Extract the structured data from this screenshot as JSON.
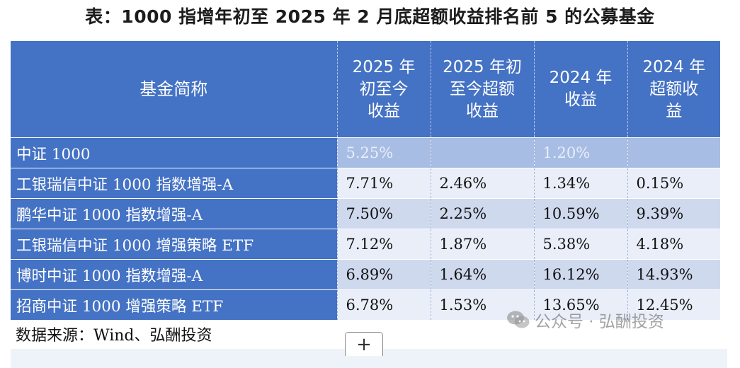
{
  "title": "表：1000 指增年初至 2025 年 2 月底超额收益排名前 5 的公募基金",
  "table": {
    "headers": {
      "name": "基金简称",
      "ytd_return": [
        "2025 年",
        "初至今",
        "收益"
      ],
      "ytd_excess": [
        "2025 年初",
        "至今超额",
        "收益"
      ],
      "return_2024": [
        "2024 年",
        "收益"
      ],
      "excess_2024": [
        "2024 年",
        "超额收",
        "益"
      ]
    },
    "rows": [
      {
        "name": "中证 1000",
        "ytd_return": "5.25%",
        "ytd_excess": "",
        "return_2024": "1.20%",
        "excess_2024": ""
      },
      {
        "name": "工银瑞信中证 1000 指数增强-A",
        "ytd_return": "7.71%",
        "ytd_excess": "2.46%",
        "return_2024": "1.34%",
        "excess_2024": "0.15%"
      },
      {
        "name": "鹏华中证 1000 指数增强-A",
        "ytd_return": "7.50%",
        "ytd_excess": "2.25%",
        "return_2024": "10.59%",
        "excess_2024": "9.39%"
      },
      {
        "name": "工银瑞信中证 1000 增强策略 ETF",
        "ytd_return": "7.12%",
        "ytd_excess": "1.87%",
        "return_2024": "5.38%",
        "excess_2024": "4.18%"
      },
      {
        "name": "博时中证 1000 指数增强-A",
        "ytd_return": "6.89%",
        "ytd_excess": "1.64%",
        "return_2024": "16.12%",
        "excess_2024": "14.93%"
      },
      {
        "name": "招商中证 1000 增强策略 ETF",
        "ytd_return": "6.78%",
        "ytd_excess": "1.53%",
        "return_2024": "13.65%",
        "excess_2024": "12.45%"
      }
    ]
  },
  "source": "数据来源：Wind、弘酬投资",
  "expand_button": "+",
  "watermark": "公众号 · 弘酬投资",
  "icons": {
    "expand": "plus-icon",
    "watermark": "wechat-icon"
  },
  "colors": {
    "header_bg": "#4472c4",
    "row_dark": "#cfd9ee",
    "row_light": "#e9eef8"
  }
}
